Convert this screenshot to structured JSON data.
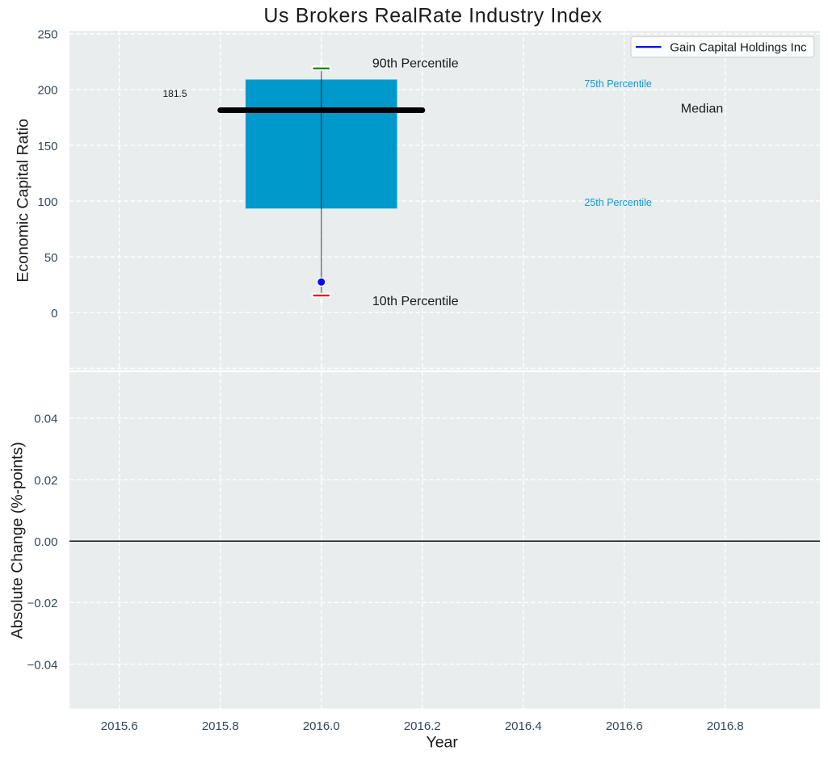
{
  "figure": {
    "background": "#ffffff",
    "axes_background": "#e9edee",
    "grid_color": "#ffffff",
    "text_color": "#1a1a1a",
    "tick_color": "#33475c"
  },
  "chart_data": [
    {
      "type": "box",
      "title": "Us Brokers RealRate Industry Index",
      "ylabel": "Economic Capital Ratio",
      "xlim": [
        2015.5012,
        2016.9875
      ],
      "ylim": [
        -51.77,
        252.8
      ],
      "grid": true,
      "yticks": [
        0,
        50,
        100,
        150,
        200,
        250
      ],
      "ytick_labels": [
        "0",
        "50",
        "100",
        "150",
        "200",
        "250"
      ],
      "grid_yticks": [
        -50,
        0,
        50,
        100,
        150,
        200,
        250
      ],
      "xticks": [
        2015.6,
        2015.8,
        2016.0,
        2016.2,
        2016.4,
        2016.6,
        2016.8
      ],
      "x": 2016.0,
      "box": {
        "p10": 15.3,
        "p25": 93.3,
        "median": 181.5,
        "p75": 209.0,
        "p90": 219.0,
        "company_value": 27.4,
        "box_x": [
          2015.85,
          2016.15
        ],
        "median_x": [
          2015.8,
          2016.2
        ],
        "box_color": "#0099cb",
        "median_color": "#000000",
        "whisker_color": "#000000",
        "p90_cap_color": "#008000",
        "p10_cap_color": "#f80000",
        "company_dot_color": "#0a0af0"
      },
      "series": [
        {
          "name": "Gain Capital Holdings Inc",
          "x": [
            2016.0
          ],
          "values": [
            27.4
          ]
        }
      ],
      "annotations": [
        {
          "text": "90th Percentile",
          "x": 2016.101,
          "y": 224.0,
          "color": "#1a1a1a",
          "fontsize": 16
        },
        {
          "text": "181.5",
          "x": 2015.686,
          "y": 196.7,
          "color": "#1a1a1a",
          "fontsize": 12
        },
        {
          "text": "Median",
          "x": 2016.712,
          "y": 183.5,
          "color": "#1a1a1a",
          "fontsize": 16
        },
        {
          "text": "75th Percentile",
          "x": 2016.521,
          "y": 205.5,
          "color": "#0d9bd0",
          "fontsize": 12.5
        },
        {
          "text": "25th Percentile",
          "x": 2016.521,
          "y": 99.0,
          "color": "#0d9bd0",
          "fontsize": 12.5
        },
        {
          "text": "10th Percentile",
          "x": 2016.101,
          "y": 10.6,
          "color": "#1a1a1a",
          "fontsize": 16
        }
      ],
      "legend": {
        "label": "Gain Capital Holdings Inc",
        "line_color": "#0a0af0",
        "position": "upper right"
      }
    },
    {
      "type": "line",
      "xlabel": "Year",
      "ylabel": "Absolute Change (%-points)",
      "xlim": [
        2015.5012,
        2016.9875
      ],
      "ylim": [
        -0.05444,
        0.05494
      ],
      "grid": true,
      "yticks": [
        -0.04,
        -0.02,
        0.0,
        0.02,
        0.04
      ],
      "ytick_labels": [
        "−0.04",
        "−0.02",
        "0.00",
        "0.02",
        "0.04"
      ],
      "xticks": [
        2015.6,
        2015.8,
        2016.0,
        2016.2,
        2016.4,
        2016.6,
        2016.8
      ],
      "xtick_labels": [
        "2015.6",
        "2015.8",
        "2016.0",
        "2016.2",
        "2016.4",
        "2016.6",
        "2016.8"
      ],
      "zero_line": 0.0,
      "zero_line_color": "#000000"
    }
  ]
}
